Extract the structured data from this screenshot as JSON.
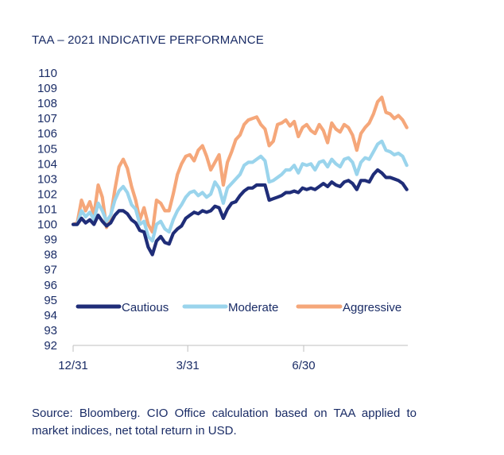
{
  "title": "TAA – 2021 INDICATIVE PERFORMANCE",
  "source": "Source: Bloomberg. CIO Office calculation based on TAA applied to market indices, net total return in USD.",
  "chart_data": {
    "type": "line",
    "title": "TAA – 2021 INDICATIVE PERFORMANCE",
    "xlabel": "",
    "ylabel": "",
    "ylim": [
      92,
      110
    ],
    "yticks": [
      92,
      93,
      94,
      95,
      96,
      97,
      98,
      99,
      100,
      101,
      102,
      103,
      104,
      105,
      106,
      107,
      108,
      109,
      110
    ],
    "xticks": [
      {
        "label": "12/31",
        "t": 0
      },
      {
        "label": "3/31",
        "t": 0.3435
      },
      {
        "label": "6/30",
        "t": 0.6909
      }
    ],
    "x_end": 0.6909,
    "legend_position": "bottom-inside",
    "grid": false,
    "series": [
      {
        "name": "Cautious",
        "color": "#1f2d78",
        "x": [
          0.0,
          0.0125,
          0.025,
          0.0375,
          0.05,
          0.0625,
          0.075,
          0.0875,
          0.1,
          0.1125,
          0.125,
          0.1375,
          0.15,
          0.1625,
          0.175,
          0.1875,
          0.2,
          0.2125,
          0.225,
          0.2375,
          0.25,
          0.2625,
          0.275,
          0.2875,
          0.3,
          0.3125,
          0.325,
          0.3375,
          0.35,
          0.3625,
          0.375,
          0.3875,
          0.4,
          0.4125,
          0.425,
          0.4375,
          0.45,
          0.4625,
          0.475,
          0.4875,
          0.5,
          0.5125,
          0.525,
          0.5375,
          0.55,
          0.5625,
          0.575,
          0.5875,
          0.6,
          0.6125,
          0.625,
          0.6375,
          0.65,
          0.6625,
          0.675,
          0.6875,
          0.7,
          0.7125,
          0.725,
          0.7375,
          0.75,
          0.7625,
          0.775,
          0.7875,
          0.8,
          0.8125,
          0.825,
          0.8375,
          0.85,
          0.8625,
          0.875,
          0.8875,
          0.9,
          0.9125,
          0.925,
          0.9375,
          0.95,
          0.9625,
          0.975,
          0.9875,
          1.0
        ],
        "values": [
          100.0,
          100.0,
          100.4,
          100.1,
          100.3,
          100.0,
          100.6,
          100.2,
          99.9,
          100.1,
          100.6,
          100.9,
          100.9,
          100.7,
          100.3,
          100.1,
          99.6,
          99.5,
          98.5,
          98.0,
          98.9,
          99.2,
          98.8,
          98.7,
          99.4,
          99.7,
          99.9,
          100.4,
          100.6,
          100.8,
          100.7,
          100.9,
          100.8,
          100.9,
          101.2,
          101.1,
          100.4,
          101.0,
          101.4,
          101.5,
          101.9,
          102.2,
          102.4,
          102.4,
          102.6,
          102.6,
          102.6,
          101.6,
          101.7,
          101.8,
          101.9,
          102.1,
          102.1,
          102.2,
          102.1,
          102.4,
          102.3,
          102.4,
          102.3,
          102.5,
          102.7,
          102.5,
          102.8,
          102.6,
          102.5,
          102.8,
          102.9,
          102.7,
          102.3,
          102.9,
          102.9,
          102.8,
          103.3,
          103.6,
          103.4,
          103.1,
          103.1,
          103.0,
          102.9,
          102.7,
          102.3
        ]
      },
      {
        "name": "Moderate",
        "color": "#9ad4ec",
        "x": [
          0.0,
          0.0125,
          0.025,
          0.0375,
          0.05,
          0.0625,
          0.075,
          0.0875,
          0.1,
          0.1125,
          0.125,
          0.1375,
          0.15,
          0.1625,
          0.175,
          0.1875,
          0.2,
          0.2125,
          0.225,
          0.2375,
          0.25,
          0.2625,
          0.275,
          0.2875,
          0.3,
          0.3125,
          0.325,
          0.3375,
          0.35,
          0.3625,
          0.375,
          0.3875,
          0.4,
          0.4125,
          0.425,
          0.4375,
          0.45,
          0.4625,
          0.475,
          0.4875,
          0.5,
          0.5125,
          0.525,
          0.5375,
          0.55,
          0.5625,
          0.575,
          0.5875,
          0.6,
          0.6125,
          0.625,
          0.6375,
          0.65,
          0.6625,
          0.675,
          0.6875,
          0.7,
          0.7125,
          0.725,
          0.7375,
          0.75,
          0.7625,
          0.775,
          0.7875,
          0.8,
          0.8125,
          0.825,
          0.8375,
          0.85,
          0.8625,
          0.875,
          0.8875,
          0.9,
          0.9125,
          0.925,
          0.9375,
          0.95,
          0.9625,
          0.975,
          0.9875,
          1.0
        ],
        "values": [
          100.0,
          100.0,
          100.9,
          100.5,
          100.8,
          100.3,
          101.4,
          100.9,
          100.2,
          100.6,
          101.6,
          102.2,
          102.5,
          102.1,
          101.3,
          101.0,
          100.0,
          100.2,
          99.2,
          98.9,
          100.0,
          100.2,
          99.7,
          99.5,
          100.3,
          100.9,
          101.3,
          101.8,
          102.1,
          102.2,
          101.9,
          102.1,
          101.8,
          102.0,
          102.8,
          102.4,
          101.4,
          102.4,
          102.7,
          103.0,
          103.3,
          103.9,
          104.1,
          104.1,
          104.3,
          104.5,
          104.2,
          102.8,
          102.9,
          103.1,
          103.3,
          103.6,
          103.6,
          103.9,
          103.4,
          104.0,
          103.9,
          104.0,
          103.6,
          104.1,
          104.2,
          103.8,
          104.3,
          104.0,
          103.8,
          104.3,
          104.4,
          104.1,
          103.3,
          104.1,
          104.4,
          104.3,
          104.8,
          105.3,
          105.5,
          104.9,
          104.8,
          104.6,
          104.7,
          104.5,
          103.9
        ]
      },
      {
        "name": "Aggressive",
        "color": "#f5a77a",
        "x": [
          0.0,
          0.0125,
          0.025,
          0.0375,
          0.05,
          0.0625,
          0.075,
          0.0875,
          0.1,
          0.1125,
          0.125,
          0.1375,
          0.15,
          0.1625,
          0.175,
          0.1875,
          0.2,
          0.2125,
          0.225,
          0.2375,
          0.25,
          0.2625,
          0.275,
          0.2875,
          0.3,
          0.3125,
          0.325,
          0.3375,
          0.35,
          0.3625,
          0.375,
          0.3875,
          0.4,
          0.4125,
          0.425,
          0.4375,
          0.45,
          0.4625,
          0.475,
          0.4875,
          0.5,
          0.5125,
          0.525,
          0.5375,
          0.55,
          0.5625,
          0.575,
          0.5875,
          0.6,
          0.6125,
          0.625,
          0.6375,
          0.65,
          0.6625,
          0.675,
          0.6875,
          0.7,
          0.7125,
          0.725,
          0.7375,
          0.75,
          0.7625,
          0.775,
          0.7875,
          0.8,
          0.8125,
          0.825,
          0.8375,
          0.85,
          0.8625,
          0.875,
          0.8875,
          0.9,
          0.9125,
          0.925,
          0.9375,
          0.95,
          0.9625,
          0.975,
          0.9875,
          1.0
        ],
        "values": [
          100.0,
          100.1,
          101.6,
          100.9,
          101.5,
          100.6,
          102.6,
          101.8,
          99.8,
          100.5,
          102.3,
          103.8,
          104.3,
          103.7,
          102.5,
          101.6,
          100.3,
          101.1,
          100.0,
          99.5,
          101.6,
          101.4,
          100.9,
          100.9,
          102.0,
          103.3,
          104.0,
          104.5,
          104.6,
          104.2,
          104.9,
          105.2,
          104.5,
          103.6,
          104.1,
          104.6,
          102.6,
          104.1,
          104.8,
          105.6,
          105.9,
          106.6,
          106.9,
          107.0,
          107.1,
          106.6,
          106.3,
          105.2,
          105.5,
          106.6,
          106.7,
          106.9,
          106.5,
          106.8,
          105.8,
          106.4,
          106.6,
          106.2,
          106.0,
          106.6,
          106.2,
          105.4,
          106.7,
          106.3,
          106.1,
          106.6,
          106.4,
          105.9,
          104.9,
          106.0,
          106.4,
          106.7,
          107.3,
          108.1,
          108.4,
          107.4,
          107.3,
          107.0,
          107.2,
          106.9,
          106.4
        ]
      }
    ]
  }
}
